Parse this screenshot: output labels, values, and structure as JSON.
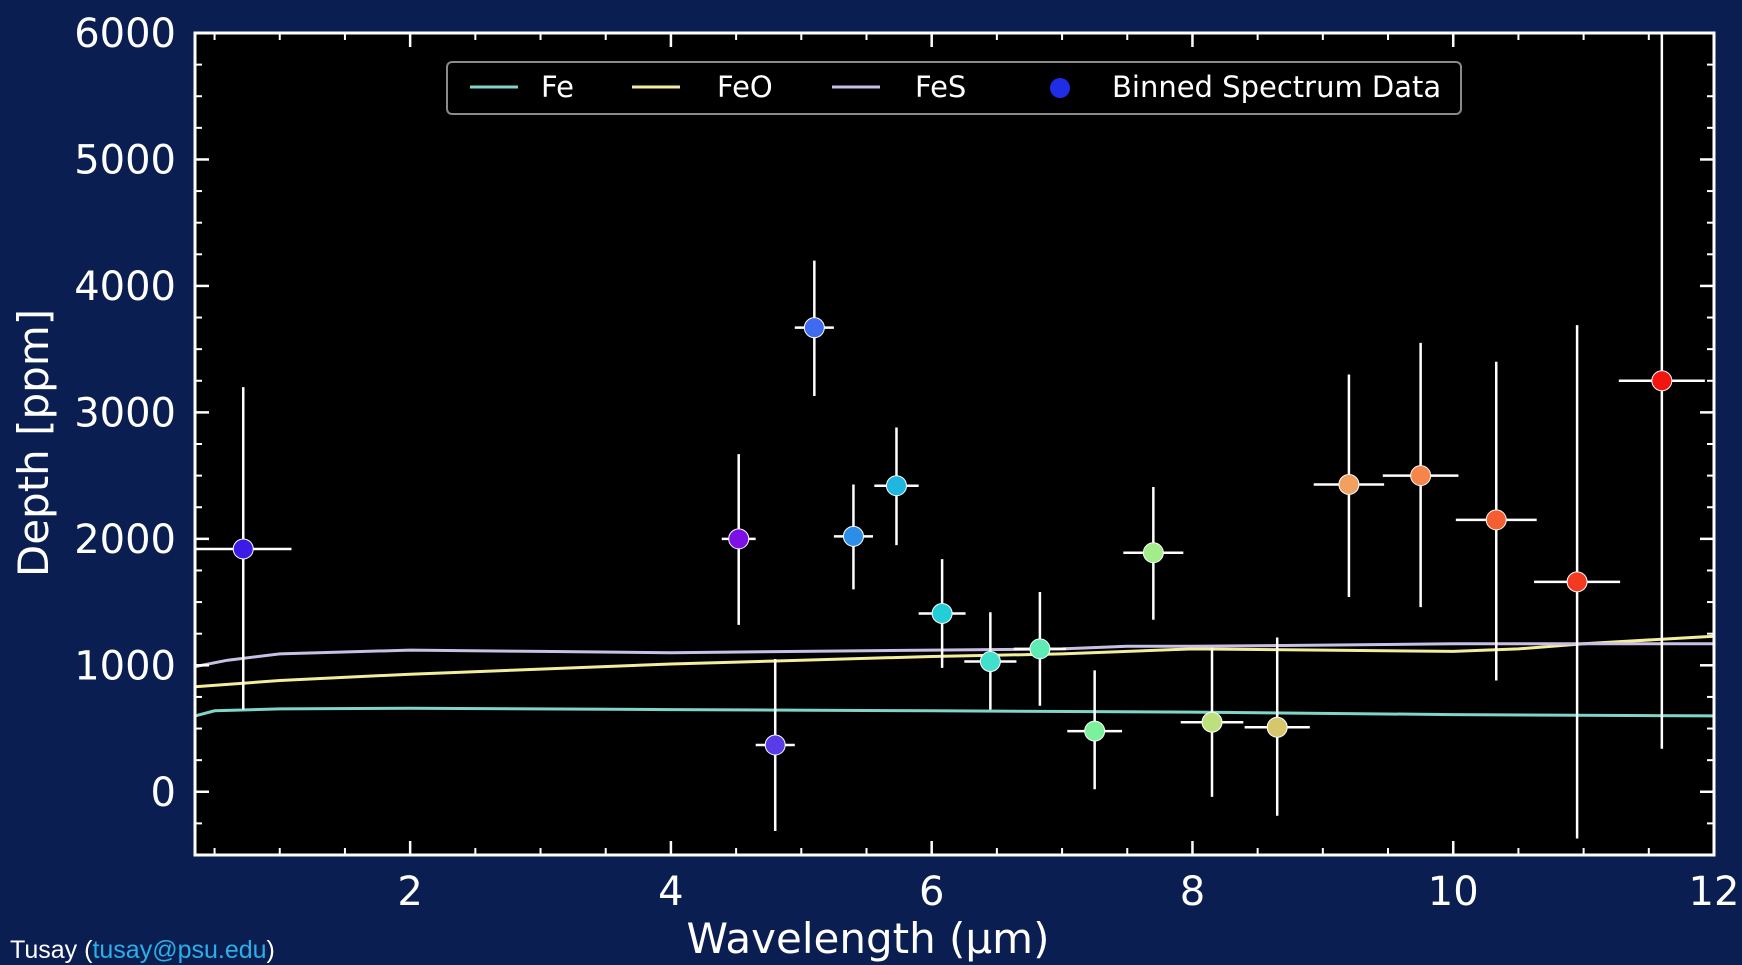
{
  "footer": {
    "author": "Tusay",
    "open_paren": "(",
    "email": "tusay@psu.edu",
    "close_paren": ")"
  },
  "colors": {
    "page_background": "#0b1e52",
    "plot_background": "#000000",
    "axes": "#ffffff",
    "Fe": "#7fd6c8",
    "FeO": "#f2ee9a",
    "FeS": "#c9bfe6",
    "error_bars": "#ffffff",
    "email_link": "#2ab0e6"
  },
  "chart_data": {
    "type": "scatter",
    "title": "",
    "xlabel": "Wavelength (μm)",
    "ylabel": "Depth [ppm]",
    "xlim": [
      0.35,
      12
    ],
    "ylim": [
      -500,
      6000
    ],
    "xticks": [
      2,
      4,
      6,
      8,
      10,
      12
    ],
    "yticks": [
      0,
      1000,
      2000,
      3000,
      4000,
      5000,
      6000
    ],
    "grid": false,
    "legend": {
      "placement": "top-center",
      "entries": [
        {
          "label": "Fe",
          "kind": "line",
          "color": "#7fd6c8"
        },
        {
          "label": "FeO",
          "kind": "line",
          "color": "#f2ee9a"
        },
        {
          "label": "FeS",
          "kind": "line",
          "color": "#c9bfe6"
        },
        {
          "label": "Binned Spectrum Data",
          "kind": "marker",
          "color": "#1f2ee6"
        }
      ]
    },
    "model_series": [
      {
        "name": "Fe",
        "color": "#7fd6c8",
        "x": [
          0.35,
          0.5,
          1,
          2,
          4,
          6,
          8,
          10,
          12
        ],
        "y": [
          600,
          640,
          655,
          660,
          650,
          640,
          630,
          610,
          600
        ]
      },
      {
        "name": "FeO",
        "color": "#f2ee9a",
        "x": [
          0.35,
          1,
          2,
          3,
          4,
          5,
          6,
          7,
          8,
          9,
          10,
          10.5,
          11,
          12
        ],
        "y": [
          830,
          880,
          930,
          970,
          1010,
          1040,
          1070,
          1090,
          1130,
          1120,
          1110,
          1130,
          1170,
          1230
        ]
      },
      {
        "name": "FeS",
        "color": "#c9bfe6",
        "x": [
          0.35,
          0.6,
          1,
          2,
          3,
          4,
          5,
          6,
          7,
          7.5,
          8,
          9,
          10,
          11,
          12
        ],
        "y": [
          990,
          1040,
          1090,
          1120,
          1110,
          1100,
          1110,
          1120,
          1130,
          1150,
          1150,
          1160,
          1170,
          1170,
          1170
        ]
      }
    ],
    "binned_data": {
      "name": "Binned Spectrum Data",
      "points": [
        {
          "x": 0.72,
          "y": 1920,
          "xerr": 0.37,
          "ylo": 650,
          "yhi": 3200,
          "color": "#3d1be6"
        },
        {
          "x": 4.52,
          "y": 2000,
          "xerr": 0.13,
          "ylo": 1320,
          "yhi": 2670,
          "color": "#7d10e6"
        },
        {
          "x": 4.8,
          "y": 370,
          "xerr": 0.15,
          "ylo": -310,
          "yhi": 1050,
          "color": "#5a3be8"
        },
        {
          "x": 5.1,
          "y": 3670,
          "xerr": 0.15,
          "ylo": 3130,
          "yhi": 4200,
          "color": "#3f6bf0"
        },
        {
          "x": 5.4,
          "y": 2020,
          "xerr": 0.15,
          "ylo": 1600,
          "yhi": 2430,
          "color": "#2b8ee8"
        },
        {
          "x": 5.73,
          "y": 2420,
          "xerr": 0.17,
          "ylo": 1950,
          "yhi": 2880,
          "color": "#1fb6e0"
        },
        {
          "x": 6.08,
          "y": 1410,
          "xerr": 0.18,
          "ylo": 980,
          "yhi": 1840,
          "color": "#22cfd8"
        },
        {
          "x": 6.45,
          "y": 1030,
          "xerr": 0.2,
          "ylo": 650,
          "yhi": 1420,
          "color": "#40e0cc"
        },
        {
          "x": 6.83,
          "y": 1130,
          "xerr": 0.2,
          "ylo": 680,
          "yhi": 1580,
          "color": "#5cecb4"
        },
        {
          "x": 7.25,
          "y": 480,
          "xerr": 0.21,
          "ylo": 20,
          "yhi": 960,
          "color": "#7cf09a"
        },
        {
          "x": 7.7,
          "y": 1890,
          "xerr": 0.23,
          "ylo": 1360,
          "yhi": 2410,
          "color": "#a4ec8a"
        },
        {
          "x": 8.15,
          "y": 550,
          "xerr": 0.24,
          "ylo": -40,
          "yhi": 1140,
          "color": "#bde07c"
        },
        {
          "x": 8.65,
          "y": 510,
          "xerr": 0.25,
          "ylo": -190,
          "yhi": 1220,
          "color": "#d6c66c"
        },
        {
          "x": 9.2,
          "y": 2430,
          "xerr": 0.27,
          "ylo": 1540,
          "yhi": 3300,
          "color": "#f2a060"
        },
        {
          "x": 9.75,
          "y": 2500,
          "xerr": 0.29,
          "ylo": 1460,
          "yhi": 3550,
          "color": "#f5854a"
        },
        {
          "x": 10.33,
          "y": 2150,
          "xerr": 0.31,
          "ylo": 880,
          "yhi": 3400,
          "color": "#f45e30"
        },
        {
          "x": 10.95,
          "y": 1660,
          "xerr": 0.33,
          "ylo": -370,
          "yhi": 3690,
          "color": "#f33a20"
        },
        {
          "x": 11.6,
          "y": 3250,
          "xerr": 0.33,
          "ylo": 340,
          "yhi": 6000,
          "color": "#f3160e"
        }
      ]
    }
  }
}
